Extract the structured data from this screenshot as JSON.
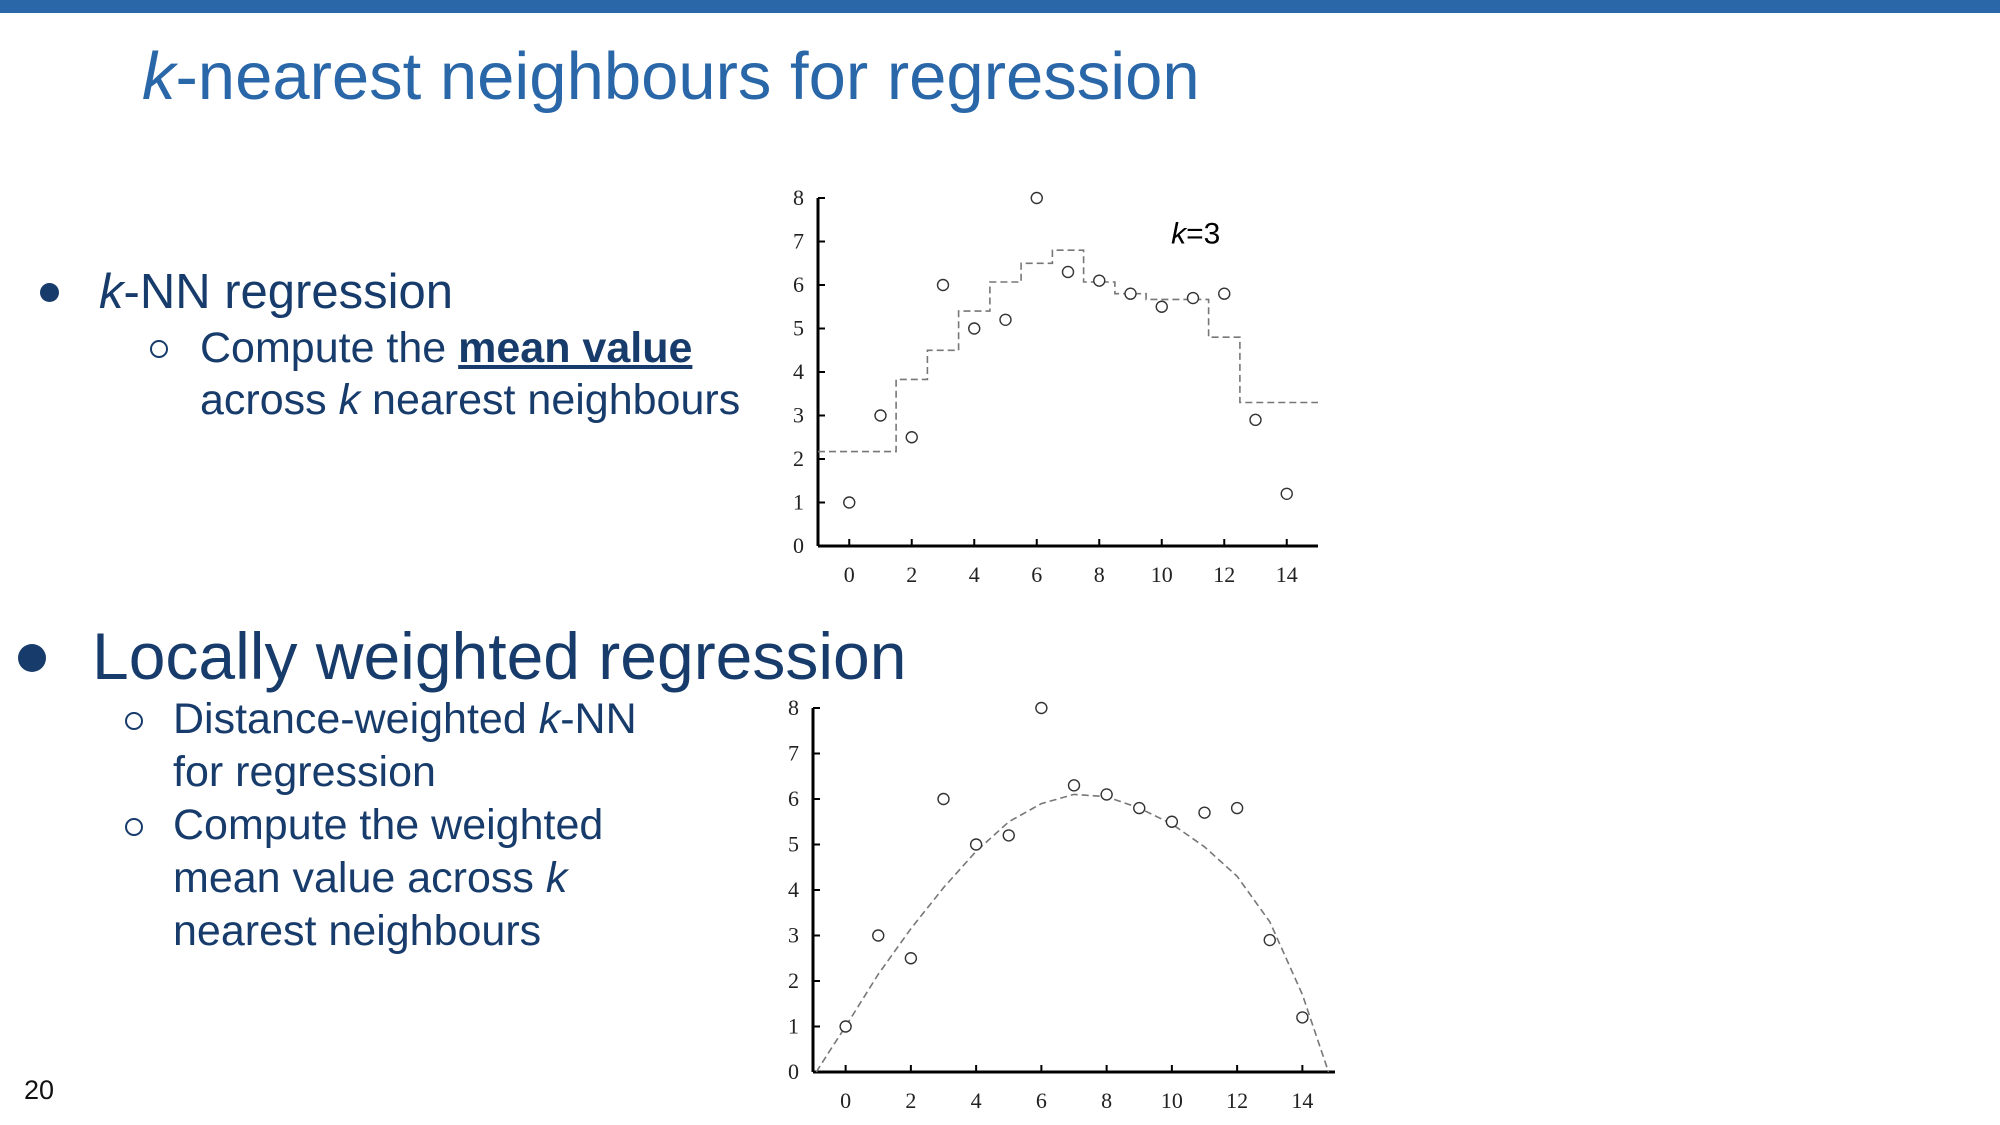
{
  "slide": {
    "title_k": "k",
    "title_rest": "-nearest neighbours for regression",
    "page_number": "20"
  },
  "bullets": {
    "knn": {
      "label_k": "k",
      "label_rest": "-NN regression",
      "sub_line1_pre": "Compute the ",
      "sub_line1_bold": "mean value",
      "sub_line2_pre": "across ",
      "sub_line2_k": "k",
      "sub_line2_rest": " nearest neighbours"
    },
    "lwr": {
      "label": "Locally weighted regression",
      "sub1_line1_pre": "Distance-weighted ",
      "sub1_line1_k": "k",
      "sub1_line1_rest": "-NN",
      "sub1_line2": "for regression",
      "sub2_line1": "Compute the weighted",
      "sub2_line2_pre": "mean value across ",
      "sub2_line2_k": "k",
      "sub2_line3": "nearest neighbours"
    }
  },
  "chart_data": [
    {
      "type": "scatter",
      "annotation_k": "k",
      "annotation_rest": "=3",
      "xlim": [
        -1,
        15
      ],
      "ylim": [
        0,
        8
      ],
      "xticks": [
        "0",
        "2",
        "4",
        "6",
        "8",
        "10",
        "12",
        "14"
      ],
      "yticks": [
        "0",
        "1",
        "2",
        "3",
        "4",
        "5",
        "6",
        "7",
        "8"
      ],
      "points": [
        [
          0,
          1
        ],
        [
          1,
          3
        ],
        [
          2,
          2.5
        ],
        [
          3,
          6
        ],
        [
          4,
          5
        ],
        [
          5,
          5.2
        ],
        [
          6,
          8
        ],
        [
          7,
          6.3
        ],
        [
          8,
          6.1
        ],
        [
          9,
          5.8
        ],
        [
          10,
          5.5
        ],
        [
          11,
          5.7
        ],
        [
          12,
          5.8
        ],
        [
          13,
          2.9
        ],
        [
          14,
          1.2
        ]
      ],
      "step_fit": [
        [
          -1,
          2.17
        ],
        [
          1.5,
          2.17
        ],
        [
          1.5,
          3.83
        ],
        [
          2.5,
          3.83
        ],
        [
          2.5,
          4.5
        ],
        [
          3.5,
          4.5
        ],
        [
          3.5,
          5.4
        ],
        [
          4.5,
          5.4
        ],
        [
          4.5,
          6.07
        ],
        [
          5.5,
          6.07
        ],
        [
          5.5,
          6.5
        ],
        [
          6.5,
          6.5
        ],
        [
          6.5,
          6.8
        ],
        [
          7.5,
          6.8
        ],
        [
          7.5,
          6.07
        ],
        [
          8.5,
          6.07
        ],
        [
          8.5,
          5.8
        ],
        [
          9.5,
          5.8
        ],
        [
          9.5,
          5.67
        ],
        [
          11.5,
          5.67
        ],
        [
          11.5,
          4.8
        ],
        [
          12.5,
          4.8
        ],
        [
          12.5,
          3.3
        ],
        [
          15,
          3.3
        ]
      ]
    },
    {
      "type": "scatter",
      "xlim": [
        -1,
        15
      ],
      "ylim": [
        0,
        8
      ],
      "xticks": [
        "0",
        "2",
        "4",
        "6",
        "8",
        "10",
        "12",
        "14"
      ],
      "yticks": [
        "0",
        "1",
        "2",
        "3",
        "4",
        "5",
        "6",
        "7",
        "8"
      ],
      "points": [
        [
          0,
          1
        ],
        [
          1,
          3
        ],
        [
          2,
          2.5
        ],
        [
          3,
          6
        ],
        [
          4,
          5
        ],
        [
          5,
          5.2
        ],
        [
          6,
          8
        ],
        [
          7,
          6.3
        ],
        [
          8,
          6.1
        ],
        [
          9,
          5.8
        ],
        [
          10,
          5.5
        ],
        [
          11,
          5.7
        ],
        [
          12,
          5.8
        ],
        [
          13,
          2.9
        ],
        [
          14,
          1.2
        ]
      ],
      "curve_fit": [
        [
          -0.9,
          0
        ],
        [
          -0.5,
          0.45
        ],
        [
          0,
          1.0
        ],
        [
          1,
          2.15
        ],
        [
          2,
          3.15
        ],
        [
          3,
          4.05
        ],
        [
          4,
          4.85
        ],
        [
          5,
          5.5
        ],
        [
          6,
          5.9
        ],
        [
          7,
          6.1
        ],
        [
          8,
          6.05
        ],
        [
          9,
          5.8
        ],
        [
          10,
          5.45
        ],
        [
          11,
          4.95
        ],
        [
          12,
          4.3
        ],
        [
          13,
          3.3
        ],
        [
          14,
          1.7
        ],
        [
          14.8,
          0
        ]
      ]
    }
  ]
}
